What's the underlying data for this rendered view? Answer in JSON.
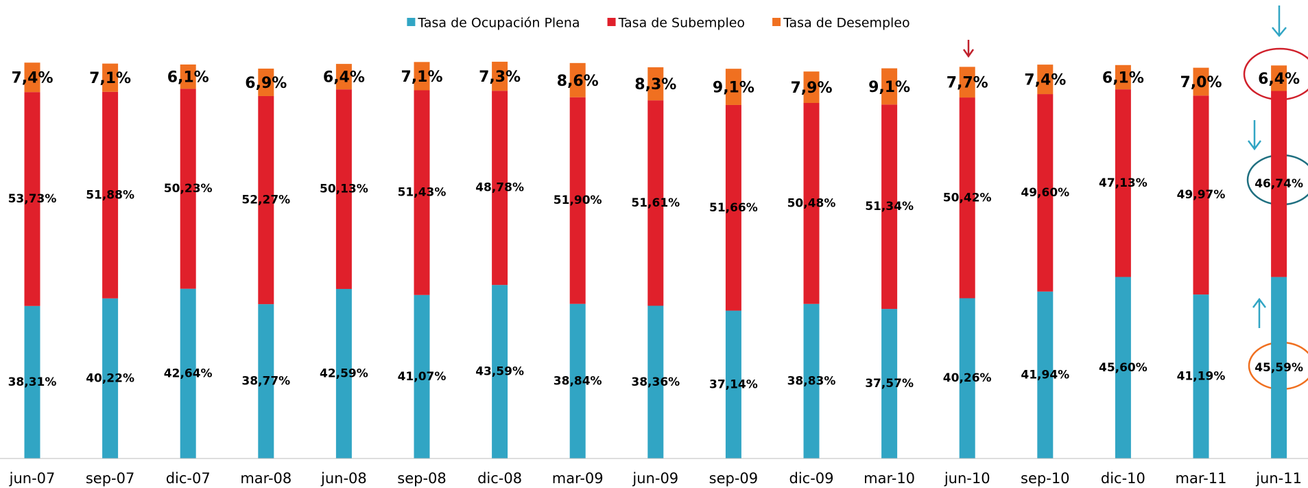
{
  "chart_data": {
    "type": "stacked_bar",
    "categories": [
      "jun-07",
      "sep-07",
      "dic-07",
      "mar-08",
      "jun-08",
      "sep-08",
      "dic-08",
      "mar-09",
      "jun-09",
      "sep-09",
      "dic-09",
      "mar-10",
      "jun-10",
      "sep-10",
      "dic-10",
      "mar-11",
      "jun-11"
    ],
    "ylim": [
      0,
      100
    ],
    "legend": "top",
    "series": [
      {
        "name": "Tasa de Ocupación Plena",
        "color": "#31a5c4",
        "values": [
          38.31,
          40.22,
          42.64,
          38.77,
          42.59,
          41.07,
          43.59,
          38.84,
          38.36,
          37.14,
          38.83,
          37.57,
          40.26,
          41.94,
          45.6,
          41.19,
          45.59
        ],
        "value_labels": [
          "38,31%",
          "40,22%",
          "42,64%",
          "38,77%",
          "42,59%",
          "41,07%",
          "43,59%",
          "38,84%",
          "38,36%",
          "37,14%",
          "38,83%",
          "37,57%",
          "40,26%",
          "41,94%",
          "45,60%",
          "41,19%",
          "45,59%"
        ]
      },
      {
        "name": "Tasa de Subempleo",
        "color": "#e0202b",
        "values": [
          53.73,
          51.88,
          50.23,
          52.27,
          50.13,
          51.43,
          48.78,
          51.9,
          51.61,
          51.66,
          50.48,
          51.34,
          50.42,
          49.6,
          47.13,
          49.97,
          46.74
        ],
        "value_labels": [
          "53,73%",
          "51,88%",
          "50,23%",
          "52,27%",
          "50,13%",
          "51,43%",
          "48,78%",
          "51,90%",
          "51,61%",
          "51,66%",
          "50,48%",
          "51,34%",
          "50,42%",
          "49,60%",
          "47,13%",
          "49,97%",
          "46,74%"
        ]
      },
      {
        "name": "Tasa de Desempleo",
        "color": "#f07020",
        "values": [
          7.4,
          7.1,
          6.1,
          6.9,
          6.4,
          7.1,
          7.3,
          8.6,
          8.3,
          9.1,
          7.9,
          9.1,
          7.7,
          7.4,
          6.1,
          7.0,
          6.4
        ],
        "value_labels": [
          "7,4%",
          "7,1%",
          "6,1%",
          "6,9%",
          "6,4%",
          "7,1%",
          "7,3%",
          "8,6%",
          "8,3%",
          "9,1%",
          "7,9%",
          "9,1%",
          "7,7%",
          "7,4%",
          "6,1%",
          "7,0%",
          "6,4%"
        ]
      }
    ]
  }
}
